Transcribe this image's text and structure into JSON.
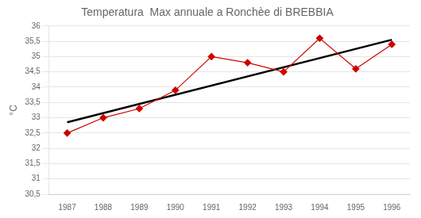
{
  "chart_data": {
    "type": "line",
    "title": "Temperatura  Max annuale a Ronchèe di BREBBIA",
    "y_label": "°C",
    "series": [
      {
        "x": [
          1987,
          1996
        ],
        "values": [
          32.85,
          35.55
        ],
        "color": "#000000",
        "marker": "none",
        "line_style": "solid"
      },
      {
        "x": [
          1987,
          1988,
          1989,
          1990,
          1991,
          1992,
          1993,
          1994,
          1995,
          1996
        ],
        "values": [
          32.5,
          33.0,
          33.3,
          33.9,
          35.0,
          34.8,
          34.5,
          35.6,
          34.6,
          35.4
        ],
        "color": "#cc0000",
        "marker": "diamond",
        "line_style": "solid"
      }
    ],
    "xlim": [
      1986.5,
      1996.5
    ],
    "xticks": [
      1987,
      1988,
      1989,
      1990,
      1991,
      1992,
      1993,
      1994,
      1995,
      1996
    ],
    "ylim": [
      30.5,
      36.0
    ],
    "yticks": [
      {
        "value": 30.5,
        "label": "30,5"
      },
      31,
      {
        "value": 31.5,
        "label": "31,5"
      },
      32,
      {
        "value": 32.5,
        "label": "32,5"
      },
      33,
      {
        "value": 33.5,
        "label": "33,5"
      },
      34,
      {
        "value": 34.5,
        "label": "34,5"
      },
      35,
      {
        "value": 35.5,
        "label": "35,5"
      },
      36
    ],
    "grid": true
  }
}
